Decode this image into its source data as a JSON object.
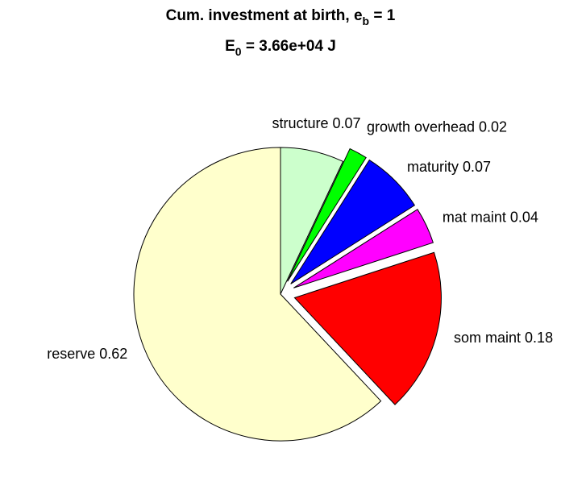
{
  "chart_data": {
    "type": "pie",
    "title_lines": [
      [
        "Cum. investment at birth, e",
        "b",
        " = 1"
      ],
      [
        "E",
        "0",
        " = 3.66e+04 J"
      ]
    ],
    "categories": [
      "structure",
      "growth overhead",
      "maturity",
      "mat maint",
      "som maint",
      "reserve"
    ],
    "values": [
      0.07,
      0.02,
      0.07,
      0.04,
      0.18,
      0.62
    ],
    "colors": [
      "#ccffcc",
      "#00ff00",
      "#0000ff",
      "#ff00ff",
      "#ff0000",
      "#ffffcc"
    ],
    "explode": [
      false,
      true,
      true,
      true,
      true,
      false
    ]
  }
}
